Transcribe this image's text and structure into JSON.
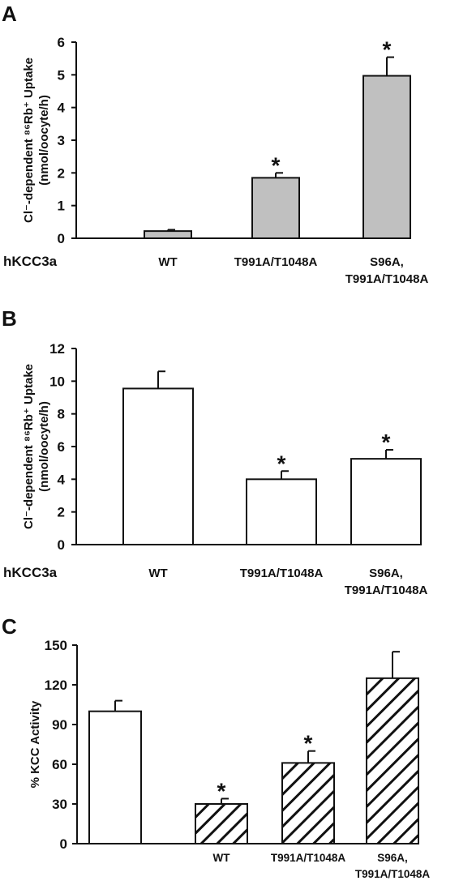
{
  "chart_data": [
    {
      "type": "bar",
      "panel": "A",
      "series_label": "hKCC3a",
      "categories": [
        "WT",
        "T991A/T1048A",
        "S96A,\nT991A/T1048A"
      ],
      "values": [
        0.22,
        1.85,
        4.97
      ],
      "errors": [
        0.04,
        0.15,
        0.57
      ],
      "significant": [
        false,
        true,
        true
      ],
      "annotation": "*",
      "ylabel": "Cl⁻-dependent ⁸⁶Rb⁺ Uptake\n(nmol/oocyte/h)",
      "ylim": [
        0,
        6
      ],
      "yticks": [
        0,
        1,
        2,
        3,
        4,
        5,
        6
      ],
      "bar_color": "#c0c0c0",
      "bar_pattern": "solid"
    },
    {
      "type": "bar",
      "panel": "B",
      "series_label": "hKCC3a",
      "categories": [
        "WT",
        "T991A/T1048A",
        "S96A,\nT991A/T1048A"
      ],
      "values": [
        9.55,
        4.0,
        5.25
      ],
      "errors": [
        1.05,
        0.5,
        0.55
      ],
      "significant": [
        false,
        true,
        true
      ],
      "annotation": "*",
      "ylabel": "Cl⁻-dependent ⁸⁶Rb⁺ Uptake\n(nmol/oocyte/h)",
      "ylim": [
        0,
        12
      ],
      "yticks": [
        0,
        2,
        4,
        6,
        8,
        10,
        12
      ],
      "bar_color": "#ffffff",
      "bar_pattern": "solid"
    },
    {
      "type": "bar",
      "panel": "C",
      "categories": [
        "",
        "WT",
        "T991A/T1048A",
        "S96A,\nT991A/T1048A"
      ],
      "values": [
        100,
        30,
        61,
        125
      ],
      "errors": [
        8,
        4,
        9,
        20
      ],
      "significant": [
        false,
        true,
        true,
        false
      ],
      "annotation": "*",
      "patterns": [
        "open",
        "hatched",
        "hatched",
        "hatched"
      ],
      "ylabel": "% KCC Activity",
      "ylim": [
        0,
        150
      ],
      "yticks": [
        0,
        30,
        60,
        90,
        120,
        150
      ],
      "bar_color": "#ffffff"
    }
  ]
}
